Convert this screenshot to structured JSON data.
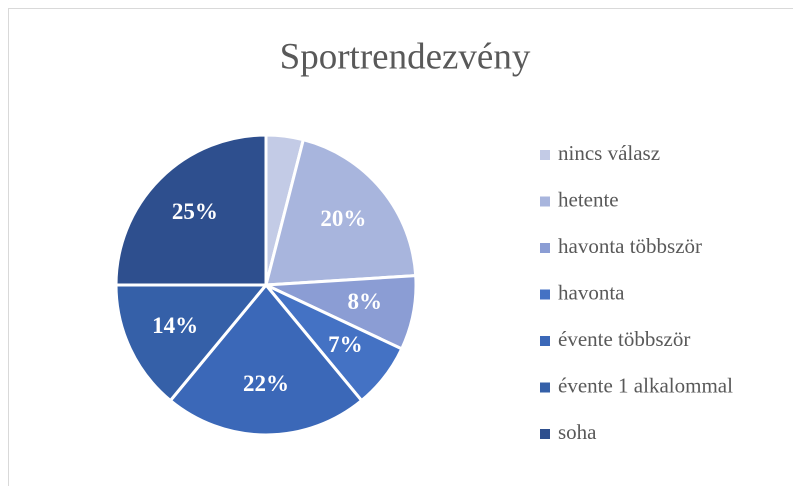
{
  "chart_data": {
    "type": "pie",
    "title": "Sportrendezvény",
    "categories": [
      "nincs válasz",
      "hetente",
      "havonta többször",
      "havonta",
      "évente többször",
      "évente 1 alkalommal",
      "soha"
    ],
    "values": [
      4,
      20,
      8,
      7,
      22,
      14,
      25
    ],
    "value_labels": [
      null,
      "20%",
      "8%",
      "7%",
      "22%",
      "14%",
      "25%"
    ],
    "colors": [
      "#c3cbe6",
      "#a8b5dd",
      "#8b9dd4",
      "#4472c4",
      "#3b68b8",
      "#3560a8",
      "#2e4f8e"
    ],
    "legend": "right"
  }
}
